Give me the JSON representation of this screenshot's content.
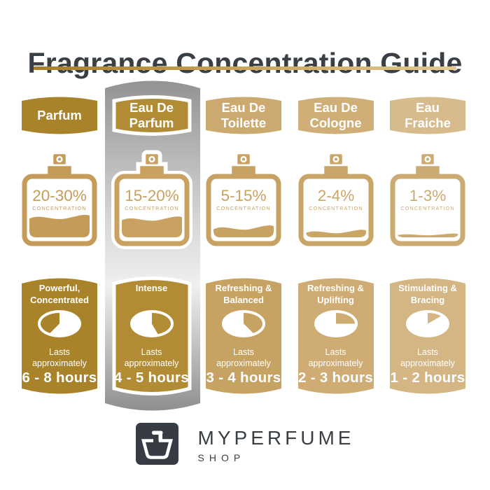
{
  "title": "Fragrance Concentration Guide",
  "underline_colors": [
    "#A87E25",
    "#CBA45B",
    "#E2C890"
  ],
  "highlight": {
    "column_index": 1,
    "gradient": [
      "#939393",
      "#D6D6D6",
      "#F0F0F0",
      "#8F8F8F"
    ]
  },
  "columns": [
    {
      "name": "Parfum",
      "concentration": "20-30%",
      "concentration_label": "CONCENTRATION",
      "fill_level": 0.36,
      "character": "Powerful,\nConcentrated",
      "lasts": "Lasts\napproximately",
      "duration": "6 - 8 hours",
      "clock": {
        "start": 225,
        "end": 360
      },
      "highlighted": false,
      "colors": {
        "badge": "#A8832A",
        "card": "#A8832A",
        "bottle": "#C49B58"
      }
    },
    {
      "name": "Eau De\nParfum",
      "concentration": "15-20%",
      "concentration_label": "CONCENTRATION",
      "fill_level": 0.33,
      "character": "Intense",
      "lasts": "Lasts\napproximately",
      "duration": "4 - 5 hours",
      "clock": {
        "start": 0,
        "end": 150
      },
      "highlighted": true,
      "colors": {
        "badge": "#B28C35",
        "card": "#B28C35",
        "bottle": "#C9A160"
      }
    },
    {
      "name": "Eau De\nToilette",
      "concentration": "5-15%",
      "concentration_label": "CONCENTRATION",
      "fill_level": 0.17,
      "character": "Refreshing &\nBalanced",
      "lasts": "Lasts\napproximately",
      "duration": "3 - 4 hours",
      "clock": {
        "start": 0,
        "end": 135
      },
      "highlighted": false,
      "colors": {
        "badge": "#CCA96F",
        "card": "#C7A363",
        "bottle": "#C8A262"
      }
    },
    {
      "name": "Eau De\nCologne",
      "concentration": "2-4%",
      "concentration_label": "CONCENTRATION",
      "fill_level": 0.1,
      "character": "Refreshing &\nUplifting",
      "lasts": "Lasts\napproximately",
      "duration": "2 - 3 hours",
      "clock": {
        "start": 0,
        "end": 90
      },
      "highlighted": false,
      "colors": {
        "badge": "#D0AE77",
        "card": "#CEAC74",
        "bottle": "#C9A668"
      }
    },
    {
      "name": "Eau\nFraiche",
      "concentration": "1-3%",
      "concentration_label": "CONCENTRATION",
      "fill_level": 0.05,
      "character": "Stimulating &\nBracing",
      "lasts": "Lasts\napproximately",
      "duration": "1 - 2 hours",
      "clock": {
        "start": 0,
        "end": 60
      },
      "highlighted": false,
      "colors": {
        "badge": "#D7BB8C",
        "card": "#D4B584",
        "bottle": "#CCAB72"
      }
    }
  ],
  "footer": {
    "brand": "MYPERFUME",
    "sub": "SHOP"
  }
}
